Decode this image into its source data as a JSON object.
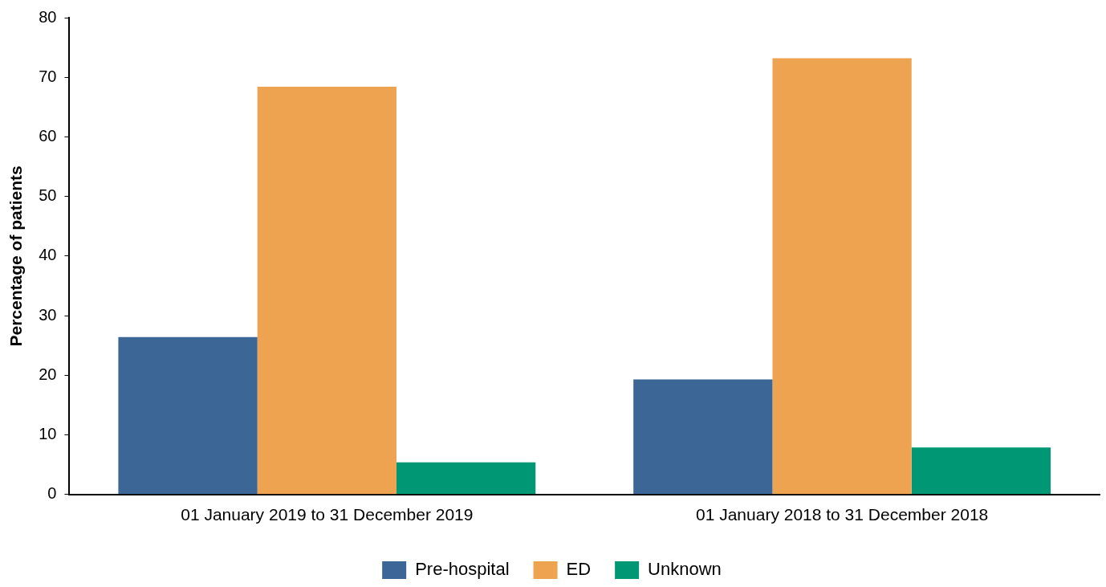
{
  "chart_data": {
    "type": "bar",
    "ylabel": "Percentage of patients",
    "categories": [
      "01 January 2019 to 31 December 2019",
      "01 January 2018 to 31 December 2018"
    ],
    "series": [
      {
        "name": "Pre-hospital",
        "color": "#3b6696",
        "values": [
          26.4,
          19.3
        ]
      },
      {
        "name": "ED",
        "color": "#eea351",
        "values": [
          68.4,
          73.2
        ]
      },
      {
        "name": "Unknown",
        "color": "#009874",
        "values": [
          5.4,
          7.9
        ]
      }
    ],
    "ylim": [
      0,
      80
    ],
    "yticks": [
      0,
      10,
      20,
      30,
      40,
      50,
      60,
      70,
      80
    ],
    "grid": false,
    "legend": "bottom"
  }
}
